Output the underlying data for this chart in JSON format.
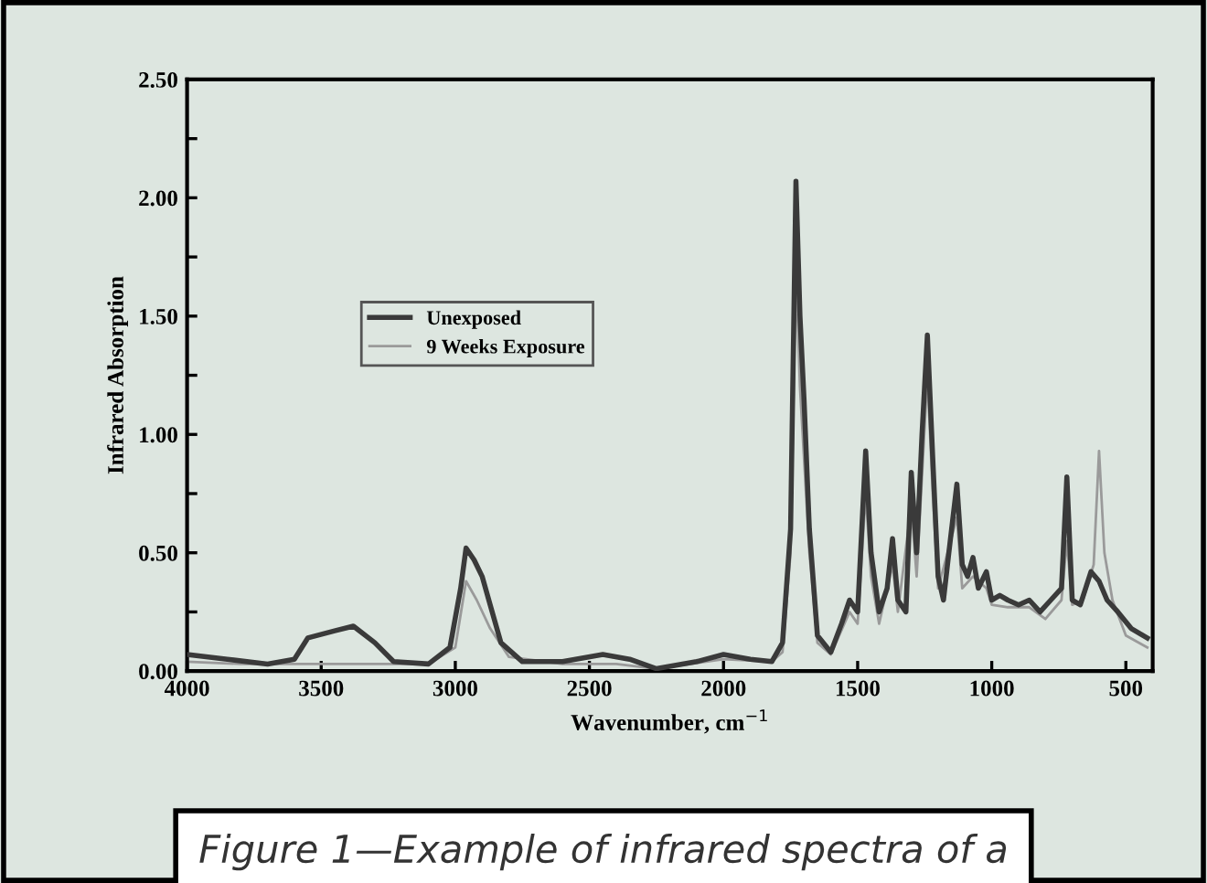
{
  "chart_data": {
    "type": "line",
    "xlabel": "Wavenumber, cm$^{−1}$",
    "ylabel": "Infrared Absorption",
    "xlim": [
      4000,
      400
    ],
    "xticks": [
      4000,
      3500,
      3000,
      2500,
      2000,
      1500,
      1000,
      500
    ],
    "ylim": [
      0,
      2.5
    ],
    "yticks": [
      {
        "value": 0,
        "label": "0.00"
      },
      {
        "value": 0.25,
        "label": null
      },
      {
        "value": 0.5,
        "label": "0.50"
      },
      {
        "value": 0.75,
        "label": null
      },
      {
        "value": 1.0,
        "label": "1.00"
      },
      {
        "value": 1.25,
        "label": null
      },
      {
        "value": 1.5,
        "label": "1.50"
      },
      {
        "value": 1.75,
        "label": null
      },
      {
        "value": 2.0,
        "label": "2.00"
      },
      {
        "value": 2.25,
        "label": null
      },
      {
        "value": 2.5,
        "label": "2.50"
      }
    ],
    "grid": false,
    "legend": "left",
    "line_style": "solid",
    "marker": "none",
    "annotations": [
      "Figure 1—Example of infrared spectra of a"
    ],
    "series": [
      {
        "name": "Unexposed",
        "color": "#3a3a3a",
        "x": [
          4000,
          3850,
          3700,
          3600,
          3550,
          3450,
          3380,
          3300,
          3230,
          3100,
          3020,
          2980,
          2960,
          2930,
          2900,
          2870,
          2830,
          2750,
          2600,
          2450,
          2350,
          2250,
          2100,
          2000,
          1900,
          1820,
          1780,
          1750,
          1730,
          1715,
          1700,
          1680,
          1650,
          1600,
          1560,
          1530,
          1500,
          1470,
          1450,
          1420,
          1390,
          1370,
          1350,
          1320,
          1300,
          1280,
          1260,
          1240,
          1220,
          1200,
          1180,
          1160,
          1130,
          1110,
          1090,
          1070,
          1050,
          1020,
          1000,
          970,
          940,
          900,
          860,
          820,
          780,
          740,
          720,
          700,
          670,
          650,
          630,
          600,
          570,
          530,
          480,
          420
        ],
        "values": [
          0.07,
          0.05,
          0.03,
          0.05,
          0.14,
          0.17,
          0.19,
          0.12,
          0.04,
          0.03,
          0.1,
          0.35,
          0.52,
          0.47,
          0.4,
          0.28,
          0.12,
          0.04,
          0.04,
          0.07,
          0.05,
          0.01,
          0.04,
          0.07,
          0.05,
          0.04,
          0.12,
          0.6,
          2.07,
          1.5,
          1.15,
          0.6,
          0.15,
          0.08,
          0.2,
          0.3,
          0.25,
          0.93,
          0.5,
          0.25,
          0.35,
          0.56,
          0.3,
          0.25,
          0.84,
          0.5,
          1.0,
          1.42,
          0.9,
          0.4,
          0.3,
          0.5,
          0.79,
          0.45,
          0.4,
          0.48,
          0.35,
          0.42,
          0.3,
          0.32,
          0.3,
          0.28,
          0.3,
          0.25,
          0.3,
          0.35,
          0.82,
          0.3,
          0.28,
          0.35,
          0.42,
          0.38,
          0.3,
          0.25,
          0.18,
          0.14
        ]
      },
      {
        "name": "9 Weeks Exposure",
        "color": "#9a9a9a",
        "x": [
          4000,
          3800,
          3500,
          3300,
          3100,
          3000,
          2960,
          2920,
          2870,
          2800,
          2600,
          2400,
          2250,
          2000,
          1820,
          1780,
          1750,
          1730,
          1715,
          1700,
          1680,
          1650,
          1600,
          1530,
          1500,
          1470,
          1450,
          1420,
          1370,
          1350,
          1300,
          1280,
          1240,
          1220,
          1200,
          1130,
          1110,
          1070,
          1020,
          1000,
          940,
          860,
          800,
          740,
          720,
          700,
          660,
          620,
          600,
          580,
          550,
          500,
          420
        ],
        "values": [
          0.04,
          0.03,
          0.03,
          0.03,
          0.03,
          0.1,
          0.38,
          0.3,
          0.18,
          0.06,
          0.03,
          0.03,
          0.01,
          0.05,
          0.04,
          0.08,
          0.5,
          1.7,
          1.2,
          0.9,
          0.5,
          0.12,
          0.07,
          0.25,
          0.2,
          0.75,
          0.4,
          0.2,
          0.45,
          0.25,
          0.7,
          0.4,
          1.25,
          0.75,
          0.35,
          0.65,
          0.35,
          0.4,
          0.35,
          0.28,
          0.27,
          0.27,
          0.22,
          0.3,
          0.55,
          0.28,
          0.3,
          0.45,
          0.93,
          0.5,
          0.3,
          0.15,
          0.1
        ]
      }
    ]
  }
}
